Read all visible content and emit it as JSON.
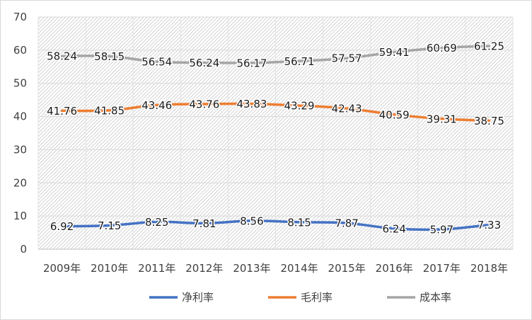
{
  "chart_data": {
    "type": "line",
    "title": "",
    "xlabel": "",
    "ylabel": "",
    "categories": [
      "2009年",
      "2010年",
      "2011年",
      "2012年",
      "2013年",
      "2014年",
      "2015年",
      "2016年",
      "2017年",
      "2018年"
    ],
    "ylim": [
      0,
      70
    ],
    "yticks": [
      0,
      10,
      20,
      30,
      40,
      50,
      60,
      70
    ],
    "grid": true,
    "plot_background": "diagonal hatch",
    "legend_position": "bottom",
    "data_labels": true,
    "series": [
      {
        "name": "净利率",
        "color": "#4472c4",
        "values": [
          6.92,
          7.15,
          8.25,
          7.81,
          8.56,
          8.15,
          7.87,
          6.24,
          5.97,
          7.33
        ],
        "labels": [
          "6.92",
          "7.15",
          "8.25",
          "7.81",
          "8.56",
          "8.15",
          "7.87",
          "6.24",
          "5.97",
          "7.33"
        ]
      },
      {
        "name": "毛利率",
        "color": "#ed7d31",
        "values": [
          41.76,
          41.85,
          43.46,
          43.76,
          43.83,
          43.29,
          42.43,
          40.59,
          39.31,
          38.75
        ],
        "labels": [
          "41.76",
          "41.85",
          "43.46",
          "43.76",
          "43.83",
          "43.29",
          "42.43",
          "40.59",
          "39.31",
          "38.75"
        ]
      },
      {
        "name": "成本率",
        "color": "#a5a5a5",
        "values": [
          58.24,
          58.15,
          56.54,
          56.24,
          56.17,
          56.71,
          57.57,
          59.41,
          60.69,
          61.25
        ],
        "labels": [
          "58.24",
          "58.15",
          "56.54",
          "56.24",
          "56.17",
          "56.71",
          "57.57",
          "59.41",
          "60.69",
          "61.25"
        ]
      }
    ]
  }
}
